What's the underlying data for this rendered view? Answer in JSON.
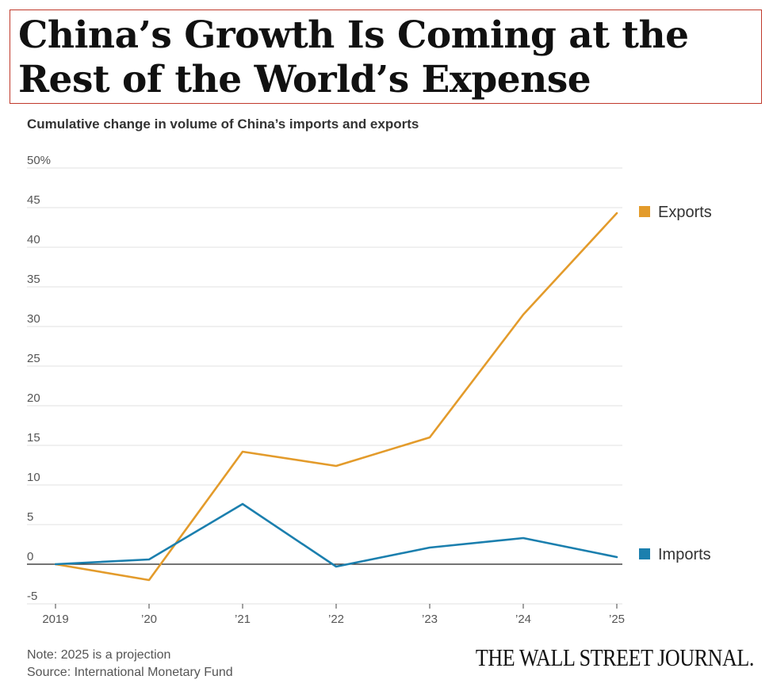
{
  "headline": "China’s Growth Is Coming at the Rest of the World’s Expense",
  "chart_data": {
    "type": "line",
    "title": "Cumulative change in volume of China’s imports and exports",
    "categories": [
      "2019",
      "’20",
      "’21",
      "’22",
      "’23",
      "’24",
      "’25"
    ],
    "series": [
      {
        "name": "Exports",
        "color": "#e39b2b",
        "values": [
          0,
          -2,
          14.2,
          12.4,
          16,
          31.5,
          44.3
        ]
      },
      {
        "name": "Imports",
        "color": "#1b7fae",
        "values": [
          0,
          0.6,
          7.6,
          -0.3,
          2.1,
          3.3,
          0.9
        ]
      }
    ],
    "y_ticks": [
      "50%",
      "45",
      "40",
      "35",
      "30",
      "25",
      "20",
      "15",
      "10",
      "5",
      "0",
      "-5"
    ],
    "y_tick_values": [
      50,
      45,
      40,
      35,
      30,
      25,
      20,
      15,
      10,
      5,
      0,
      -5
    ],
    "ylim": [
      -5,
      50
    ],
    "xlabel": "",
    "ylabel": "",
    "grid": true,
    "legend": "right"
  },
  "footer": {
    "note": "Note: 2025 is a projection",
    "source": "Source: International Monetary Fund",
    "logo": "THE WALL STREET JOURNAL."
  }
}
